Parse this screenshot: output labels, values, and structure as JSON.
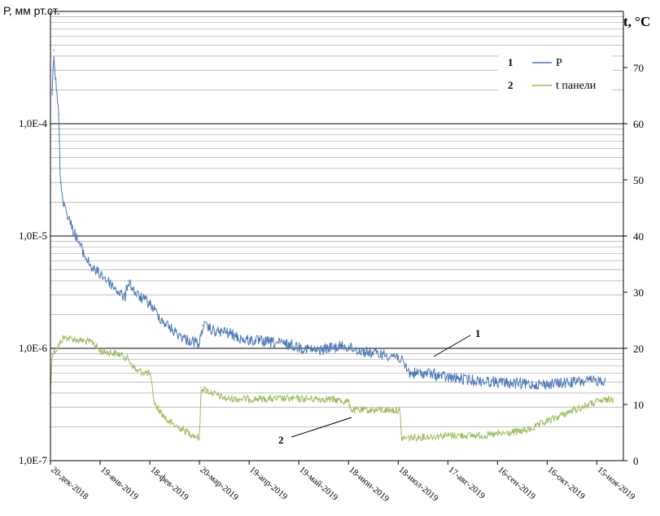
{
  "chart_data": {
    "type": "line",
    "ylabel_left": "Р, мм рт.ст.",
    "ylabel_right": "t, °C",
    "y_left_scale": "log",
    "y_left_range": [
      1e-07,
      0.001
    ],
    "y_left_ticks": [
      {
        "value": 1e-07,
        "label": "1,0E-7"
      },
      {
        "value": 1e-06,
        "label": "1,0E-6"
      },
      {
        "value": 1e-05,
        "label": "1,0E-5"
      },
      {
        "value": 0.0001,
        "label": "1,0E-4"
      }
    ],
    "y_right_range": [
      0,
      80
    ],
    "y_right_ticks": [
      "0",
      "10",
      "20",
      "30",
      "40",
      "50",
      "60",
      "70"
    ],
    "x_range": [
      "2018-12-20",
      "2019-12-01"
    ],
    "x_tick_labels": [
      {
        "date": "2018-12-20",
        "label": "20-дек-2018"
      },
      {
        "date": "2019-01-19",
        "label": "19-янв-2019"
      },
      {
        "date": "2019-02-18",
        "label": "18-фев-2019"
      },
      {
        "date": "2019-03-20",
        "label": "20-мар-2019"
      },
      {
        "date": "2019-04-19",
        "label": "19-апр-2019"
      },
      {
        "date": "2019-05-19",
        "label": "19-май-2019"
      },
      {
        "date": "2019-06-18",
        "label": "18-июн-2019"
      },
      {
        "date": "2019-07-18",
        "label": "18-июл-2019"
      },
      {
        "date": "2019-08-17",
        "label": "17-авг-2019"
      },
      {
        "date": "2019-09-16",
        "label": "16-сен-2019"
      },
      {
        "date": "2019-10-16",
        "label": "16-окт-2019"
      },
      {
        "date": "2019-11-15",
        "label": "15-ноя-2019"
      }
    ],
    "grid": true,
    "legend_placement": "top-right",
    "series": [
      {
        "name": "P",
        "axis": "left",
        "color": "#4a78b8",
        "legend_number": "1",
        "points": [
          [
            "2018-12-21",
            0.0002
          ],
          [
            "2018-12-22",
            0.00045
          ],
          [
            "2018-12-23",
            0.00025
          ],
          [
            "2018-12-25",
            0.00012
          ],
          [
            "2018-12-26",
            3e-05
          ],
          [
            "2018-12-28",
            2e-05
          ],
          [
            "2019-01-01",
            1.3e-05
          ],
          [
            "2019-01-05",
            9.5e-06
          ],
          [
            "2019-01-10",
            6.5e-06
          ],
          [
            "2019-01-15",
            5e-06
          ],
          [
            "2019-01-20",
            4.5e-06
          ],
          [
            "2019-01-25",
            3.8e-06
          ],
          [
            "2019-01-30",
            3.2e-06
          ],
          [
            "2019-02-03",
            2.8e-06
          ],
          [
            "2019-02-05",
            4e-06
          ],
          [
            "2019-02-10",
            3e-06
          ],
          [
            "2019-02-18",
            2.5e-06
          ],
          [
            "2019-02-25",
            1.8e-06
          ],
          [
            "2019-03-05",
            1.4e-06
          ],
          [
            "2019-03-12",
            1.2e-06
          ],
          [
            "2019-03-20",
            1.1e-06
          ],
          [
            "2019-03-22",
            1.6e-06
          ],
          [
            "2019-03-30",
            1.4e-06
          ],
          [
            "2019-04-05",
            1.4e-06
          ],
          [
            "2019-04-15",
            1.2e-06
          ],
          [
            "2019-05-10",
            1.1e-06
          ],
          [
            "2019-05-30",
            9.5e-07
          ],
          [
            "2019-06-05",
            1e-06
          ],
          [
            "2019-06-15",
            1.05e-06
          ],
          [
            "2019-06-25",
            9.5e-07
          ],
          [
            "2019-07-05",
            9e-07
          ],
          [
            "2019-07-18",
            8.5e-07
          ],
          [
            "2019-07-25",
            6e-07
          ],
          [
            "2019-08-05",
            6e-07
          ],
          [
            "2019-08-17",
            5.5e-07
          ],
          [
            "2019-09-01",
            5.2e-07
          ],
          [
            "2019-09-16",
            5e-07
          ],
          [
            "2019-10-01",
            4.8e-07
          ],
          [
            "2019-10-16",
            4.8e-07
          ],
          [
            "2019-11-01",
            5e-07
          ],
          [
            "2019-11-20",
            5.2e-07
          ]
        ]
      },
      {
        "name": "t панели",
        "axis": "right",
        "color": "#9bbb59",
        "legend_number": "2",
        "points": [
          [
            "2018-12-20",
            12
          ],
          [
            "2018-12-21",
            19
          ],
          [
            "2018-12-24",
            20
          ],
          [
            "2018-12-28",
            22
          ],
          [
            "2019-01-05",
            21.5
          ],
          [
            "2019-01-15",
            21
          ],
          [
            "2019-01-19",
            19.5
          ],
          [
            "2019-01-30",
            19
          ],
          [
            "2019-02-03",
            18.5
          ],
          [
            "2019-02-05",
            18
          ],
          [
            "2019-02-10",
            16
          ],
          [
            "2019-02-18",
            15.5
          ],
          [
            "2019-02-21",
            10
          ],
          [
            "2019-03-01",
            7
          ],
          [
            "2019-03-10",
            5.5
          ],
          [
            "2019-03-20",
            4
          ],
          [
            "2019-03-21",
            13
          ],
          [
            "2019-03-28",
            12
          ],
          [
            "2019-04-05",
            11
          ],
          [
            "2019-04-19",
            11
          ],
          [
            "2019-05-19",
            11
          ],
          [
            "2019-06-05",
            11
          ],
          [
            "2019-06-18",
            10.5
          ],
          [
            "2019-06-20",
            9
          ],
          [
            "2019-07-10",
            9
          ],
          [
            "2019-07-19",
            9
          ],
          [
            "2019-07-20",
            4
          ],
          [
            "2019-08-17",
            4.5
          ],
          [
            "2019-09-10",
            4.5
          ],
          [
            "2019-09-25",
            5
          ],
          [
            "2019-10-05",
            5.5
          ],
          [
            "2019-10-16",
            7
          ],
          [
            "2019-11-01",
            9
          ],
          [
            "2019-11-15",
            10.5
          ],
          [
            "2019-11-25",
            11
          ]
        ]
      }
    ],
    "annotations": [
      {
        "text": "1",
        "series": "P"
      },
      {
        "text": "2",
        "series": "t панели"
      }
    ]
  }
}
